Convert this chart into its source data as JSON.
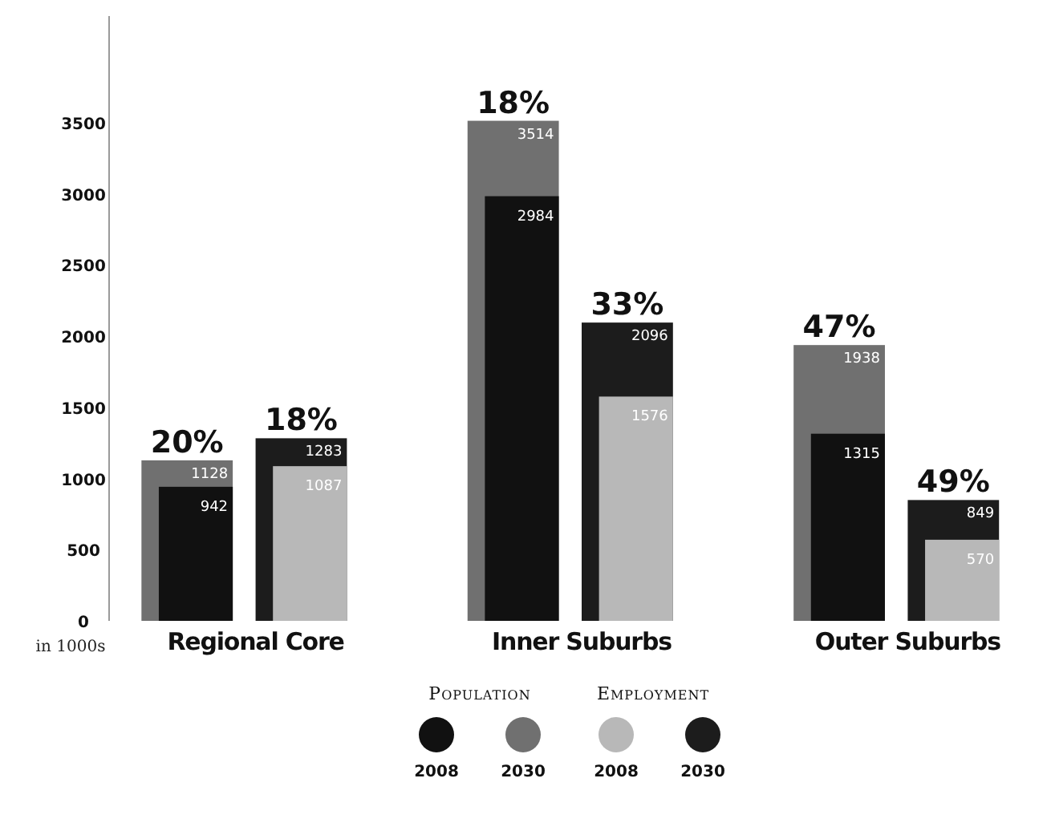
{
  "chart_data": {
    "type": "bar",
    "ylabel": "in 1000s",
    "categories": [
      "Regional Core",
      "Inner Suburbs",
      "Outer Suburbs"
    ],
    "series": [
      {
        "name": "2008",
        "color": "#111111",
        "values": [
          942,
          2984,
          1315
        ]
      },
      {
        "name": "2030",
        "color": "#707070",
        "values": [
          1128,
          3514,
          1938
        ]
      },
      {
        "name": "2008",
        "color": "#b8b8b8",
        "values": [
          1087,
          1576,
          570
        ]
      },
      {
        "name": "2030",
        "color": "#1c1c1c",
        "values": [
          1283,
          2096,
          849
        ]
      }
    ],
    "ylim": [
      0,
      4250
    ],
    "yticks": [
      0,
      500,
      1000,
      1500,
      2000,
      2500,
      3000,
      3500
    ],
    "legend": "bottom",
    "data_labels": true,
    "annotations": [
      "20%",
      "18%",
      "18%",
      "33%",
      "47%",
      "49%",
      "Population",
      "Employment"
    ]
  }
}
